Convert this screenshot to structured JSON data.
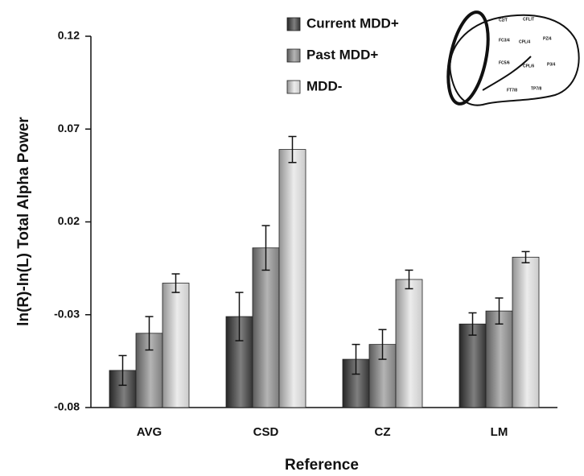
{
  "chart_data": {
    "type": "bar",
    "x_label": "Reference",
    "y_label": "ln(R)-ln(L) Total Alpha Power",
    "categories": [
      "AVG",
      "CSD",
      "CZ",
      "LM"
    ],
    "series": [
      {
        "name": "Current MDD+",
        "color": "#3a3a3a",
        "values": [
          -0.06,
          -0.031,
          -0.054,
          -0.035
        ],
        "errors": [
          0.008,
          0.013,
          0.008,
          0.006
        ]
      },
      {
        "name": "Past MDD+",
        "color": "#8c8c8c",
        "values": [
          -0.04,
          0.006,
          -0.046,
          -0.028
        ],
        "errors": [
          0.009,
          0.012,
          0.008,
          0.007
        ]
      },
      {
        "name": "MDD-",
        "color": "#e2e2e2",
        "values": [
          -0.013,
          0.059,
          -0.011,
          0.001
        ],
        "errors": [
          0.005,
          0.007,
          0.005,
          0.003
        ]
      }
    ],
    "ylim": [
      -0.08,
      0.12
    ],
    "yticks": [
      -0.08,
      -0.03,
      0.02,
      0.07,
      0.12
    ],
    "legend": "top-right"
  }
}
